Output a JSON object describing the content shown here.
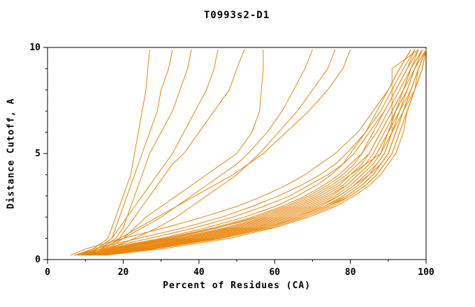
{
  "title": "T0993s2-D1",
  "chart_data": {
    "type": "line",
    "title": "T0993s2-D1",
    "xlabel": "Percent of Residues (CA)",
    "ylabel": "Distance Cutoff, A",
    "xlim": [
      0,
      100
    ],
    "ylim": [
      0,
      10
    ],
    "x_ticks": [
      0,
      20,
      40,
      60,
      80,
      100
    ],
    "x_minor_ticks": [
      10,
      30,
      50,
      70,
      90
    ],
    "y_ticks": [
      0,
      5,
      10
    ],
    "y_minor_ticks": [
      1,
      2,
      3,
      4,
      6,
      7,
      8,
      9
    ],
    "grid": false,
    "legend": "none",
    "line_color": "#e8860b",
    "frame_color": "#000000",
    "y_grid": [
      0.2,
      0.5,
      1,
      1.5,
      2,
      2.5,
      3,
      3.5,
      4,
      4.5,
      5,
      6,
      7,
      8,
      9,
      9.9
    ],
    "series": [
      {
        "x": [
          8,
          12,
          16,
          17,
          18,
          19,
          20,
          21,
          22,
          22.5,
          23,
          24,
          25,
          26,
          26.5,
          27
        ]
      },
      {
        "x": [
          9,
          13,
          17,
          18,
          19,
          20,
          21,
          22,
          23,
          24,
          25,
          27,
          29,
          30,
          32,
          33
        ]
      },
      {
        "x": [
          10,
          14,
          18,
          20,
          21,
          22,
          23,
          24,
          25,
          26,
          27,
          30,
          33,
          35,
          37,
          38
        ]
      },
      {
        "x": [
          9,
          13,
          17,
          19,
          21,
          23,
          25,
          27,
          29,
          31,
          33,
          36,
          39,
          42,
          44,
          45
        ]
      },
      {
        "x": [
          11,
          15,
          19,
          21,
          23,
          25,
          27,
          29,
          31,
          33,
          36,
          40,
          44,
          48,
          50,
          52
        ]
      },
      {
        "x": [
          10,
          16,
          20,
          23,
          26,
          30,
          34,
          38,
          42,
          46,
          50,
          54,
          56,
          56.5,
          57,
          57
        ]
      },
      {
        "x": [
          9,
          14,
          20,
          25,
          30,
          34,
          38,
          42,
          46,
          50,
          53,
          58,
          62,
          65,
          68,
          70
        ]
      },
      {
        "x": [
          10,
          16,
          23,
          29,
          34,
          38,
          42,
          46,
          50,
          53,
          56,
          61,
          66,
          70,
          74,
          76
        ]
      },
      {
        "x": [
          8,
          13,
          19,
          24,
          29,
          34,
          39,
          44,
          49,
          53,
          57,
          63,
          69,
          74,
          78,
          80
        ]
      },
      {
        "x": [
          7,
          15,
          30,
          42,
          52,
          60,
          66,
          71,
          75,
          78,
          80,
          84,
          87,
          90,
          93,
          96
        ]
      },
      {
        "x": [
          8,
          17,
          33,
          45,
          55,
          63,
          69,
          74,
          78,
          81,
          83,
          86,
          89,
          92,
          95,
          98
        ]
      },
      {
        "x": [
          9,
          18,
          35,
          48,
          58,
          66,
          72,
          77,
          80,
          83,
          85,
          88,
          91,
          94,
          96,
          99
        ]
      },
      {
        "x": [
          10,
          20,
          38,
          51,
          61,
          69,
          75,
          79,
          82,
          85,
          87,
          90,
          92,
          95,
          97,
          100
        ]
      },
      {
        "x": [
          11,
          22,
          40,
          53,
          63,
          71,
          77,
          81,
          84,
          87,
          89,
          91,
          93,
          96,
          98,
          100
        ]
      },
      {
        "x": [
          12,
          24,
          42,
          55,
          65,
          73,
          78,
          82,
          85,
          88,
          90,
          92,
          94,
          96,
          98,
          100
        ]
      },
      {
        "x": [
          10,
          19,
          36,
          49,
          59,
          67,
          73,
          78,
          81,
          84,
          86,
          89,
          92,
          94,
          97,
          99
        ]
      },
      {
        "x": [
          9,
          16,
          31,
          44,
          54,
          62,
          68,
          73,
          77,
          80,
          83,
          87,
          90,
          93,
          96,
          98
        ]
      },
      {
        "x": [
          13,
          26,
          44,
          57,
          67,
          74,
          79,
          83,
          86,
          88,
          90,
          92,
          94,
          96,
          98,
          100
        ]
      },
      {
        "x": [
          14,
          28,
          46,
          59,
          68,
          75,
          80,
          84,
          87,
          89,
          91,
          93,
          95,
          97,
          99,
          100
        ]
      },
      {
        "x": [
          8,
          14,
          27,
          39,
          49,
          57,
          64,
          69,
          74,
          78,
          81,
          85,
          89,
          92,
          95,
          97
        ]
      },
      {
        "x": [
          7,
          12,
          24,
          36,
          46,
          54,
          61,
          67,
          72,
          76,
          79,
          84,
          88,
          91,
          94,
          97
        ]
      },
      {
        "x": [
          10,
          21,
          39,
          52,
          62,
          70,
          76,
          80,
          83,
          86,
          88,
          90,
          93,
          95,
          97,
          99
        ]
      },
      {
        "x": [
          11,
          23,
          41,
          54,
          64,
          72,
          77,
          81,
          85,
          87,
          89,
          91,
          94,
          96,
          98,
          100
        ]
      },
      {
        "x": [
          12,
          25,
          43,
          56,
          66,
          73,
          79,
          83,
          86,
          88,
          90,
          92,
          94,
          97,
          99,
          100
        ]
      },
      {
        "x": [
          9,
          18,
          34,
          47,
          57,
          65,
          71,
          76,
          80,
          84,
          88,
          91,
          91,
          91,
          91,
          98
        ]
      },
      {
        "x": [
          15,
          30,
          48,
          60,
          69,
          76,
          81,
          85,
          88,
          90,
          92,
          94,
          95,
          97,
          99,
          100
        ]
      },
      {
        "x": [
          6,
          10,
          20,
          31,
          41,
          50,
          57,
          63,
          68,
          72,
          76,
          82,
          86,
          90,
          93,
          96
        ]
      },
      {
        "x": [
          10,
          17,
          32,
          45,
          56,
          64,
          70,
          75,
          79,
          82,
          85,
          88,
          91,
          94,
          96,
          99
        ]
      },
      {
        "x": [
          12,
          21,
          37,
          50,
          60,
          68,
          74,
          79,
          82,
          85,
          87,
          90,
          92,
          95,
          97,
          100
        ]
      },
      {
        "x": [
          13,
          27,
          45,
          58,
          67,
          74,
          80,
          84,
          87,
          89,
          91,
          93,
          95,
          97,
          98,
          100
        ]
      }
    ]
  }
}
